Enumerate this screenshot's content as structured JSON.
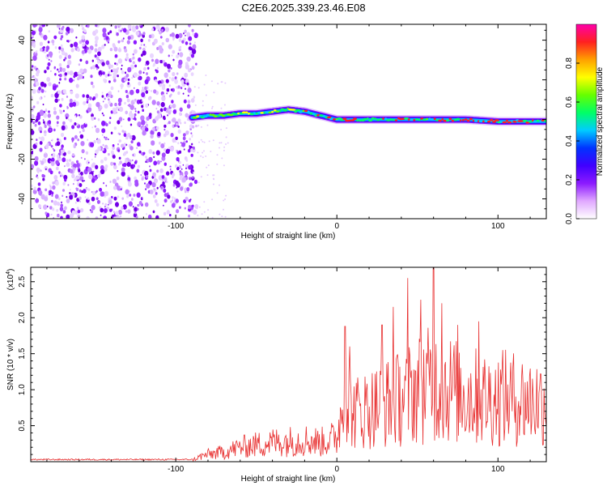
{
  "title": "C2E6.2025.339.23.46.E08",
  "chart_data": [
    {
      "type": "heatmap",
      "name": "spectrogram",
      "xlabel": "Height of straight line (km)",
      "ylabel": "Frequency (Hz)",
      "xlim": [
        -190,
        130
      ],
      "ylim": [
        -50,
        48
      ],
      "x_ticks": [
        -100,
        0,
        100
      ],
      "y_ticks": [
        40,
        20,
        0,
        -20,
        -40
      ],
      "noise_region_end_km": -90,
      "signal_line": {
        "x": [
          -90,
          -80,
          -70,
          -60,
          -50,
          -40,
          -30,
          -20,
          -10,
          0,
          20,
          40,
          60,
          80,
          100,
          130
        ],
        "freq_hz": [
          1,
          2,
          2,
          3,
          3,
          4,
          5,
          4,
          2,
          0,
          0,
          0,
          0,
          0,
          -1,
          -1
        ]
      },
      "colorbar": {
        "label": "Normalized spectral amplitude",
        "ticks": [
          0.0,
          0.2,
          0.4,
          0.6,
          0.8
        ],
        "range": [
          0.0,
          1.0
        ],
        "colors": [
          "#ffffff",
          "#e0a8ff",
          "#8c1aff",
          "#4000ff",
          "#0033ff",
          "#00ccff",
          "#00ff66",
          "#66ff00",
          "#ffff00",
          "#ffa000",
          "#ff2020",
          "#ff00aa"
        ]
      }
    },
    {
      "type": "line",
      "name": "snr",
      "xlabel": "Height of straight line (km)",
      "ylabel": "SNR (10 * v/v)",
      "y_scale_label": "(x10",
      "y_scale_exp": "4",
      "y_scale_close": ")",
      "xlim": [
        -190,
        130
      ],
      "ylim": [
        0,
        2.7
      ],
      "x_ticks": [
        -100,
        0,
        100
      ],
      "y_ticks": [
        "0.5",
        "1.0",
        "1.5",
        "2.0",
        "2.5"
      ],
      "line_color": "#e83030",
      "x_range": [
        -190,
        130
      ],
      "baseline_level": 0.02,
      "envelope": {
        "x": [
          -190,
          -90,
          -85,
          -80,
          -70,
          -60,
          -50,
          -40,
          -30,
          -20,
          -10,
          0,
          5,
          10,
          20,
          30,
          40,
          50,
          60,
          70,
          80,
          90,
          100,
          110,
          120,
          130
        ],
        "y": [
          0.03,
          0.03,
          0.1,
          0.15,
          0.2,
          0.3,
          0.35,
          0.4,
          0.42,
          0.45,
          0.4,
          0.5,
          1.4,
          1.0,
          1.1,
          1.2,
          1.3,
          1.5,
          1.6,
          1.5,
          1.4,
          1.3,
          1.3,
          1.3,
          1.25,
          1.25
        ]
      },
      "peaks": [
        {
          "x": 5,
          "y": 1.88
        },
        {
          "x": 8,
          "y": 1.6
        },
        {
          "x": 28,
          "y": 1.9
        },
        {
          "x": 35,
          "y": 2.15
        },
        {
          "x": 44,
          "y": 2.55
        },
        {
          "x": 52,
          "y": 2.25
        },
        {
          "x": 60,
          "y": 2.72
        },
        {
          "x": 65,
          "y": 2.2
        },
        {
          "x": 75,
          "y": 1.9
        },
        {
          "x": 88,
          "y": 1.95
        },
        {
          "x": 103,
          "y": 1.55
        }
      ]
    }
  ]
}
